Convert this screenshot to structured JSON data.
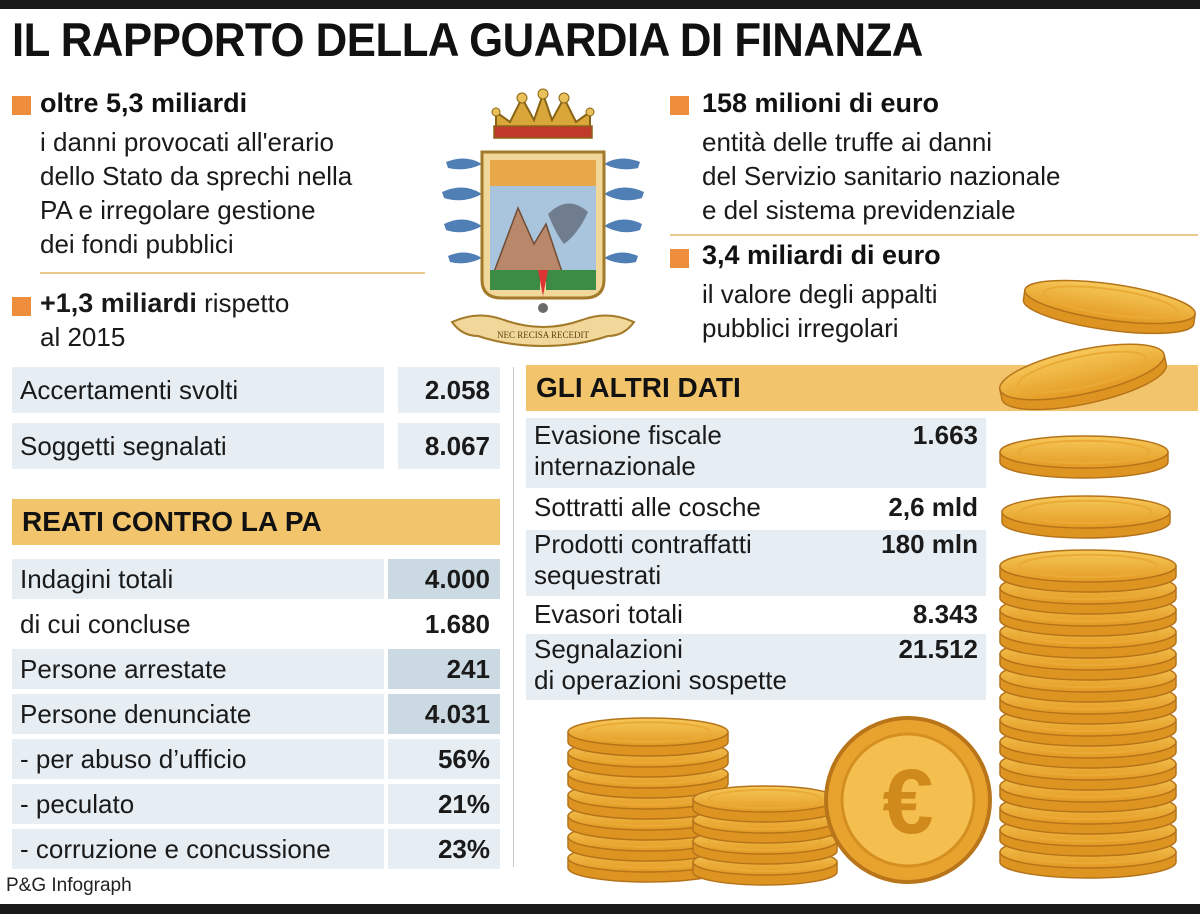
{
  "title": "IL RAPPORTO DELLA GUARDIA DI FINANZA",
  "colors": {
    "accent": "#ee8d3c",
    "section_header": "#f2c56c",
    "row_bg": "#e6eef4",
    "value_dark_bg": "#cbd9e3",
    "coin": "#f0b43c"
  },
  "left_top": {
    "headline": "oltre 5,3 miliardi",
    "lines": [
      "i danni provocati all'erario",
      "dello Stato da sprechi nella",
      "PA e irregolare gestione",
      "dei fondi pubblici"
    ],
    "second_headline": "+1,3 miliardi",
    "second_suffix": " rispetto",
    "second_line2": "al 2015"
  },
  "crest": {
    "icon": "guardia-di-finanza-crest-icon",
    "motto": "NEC RECISA RECEDIT"
  },
  "right_top": {
    "headline1": "158 milioni di euro",
    "lines1": [
      "entità delle truffe ai danni",
      "del Servizio sanitario nazionale",
      "e del sistema previdenziale"
    ],
    "headline2": "3,4 miliardi di euro",
    "lines2": [
      "il valore degli appalti",
      "pubblici irregolari"
    ]
  },
  "summary_table": [
    {
      "label": "Accertamenti svolti",
      "value": "2.058"
    },
    {
      "label": "Soggetti segnalati",
      "value": "8.067"
    }
  ],
  "reati": {
    "header": "REATI CONTRO LA PA",
    "rows": [
      {
        "label": "Indagini totali",
        "value": "4.000"
      },
      {
        "label": "di cui concluse",
        "value": "1.680"
      },
      {
        "label": "Persone arrestate",
        "value": "241"
      },
      {
        "label": "Persone denunciate",
        "value": "4.031"
      },
      {
        "label": "- per abuso d’ufficio",
        "value": "56%"
      },
      {
        "label": "- peculato",
        "value": "21%"
      },
      {
        "label": "- corruzione e concussione",
        "value": "23%"
      }
    ]
  },
  "altri": {
    "header": "GLI ALTRI DATI",
    "rows": [
      {
        "label1": "Evasione fiscale",
        "label2": "internazionale",
        "value": "1.663"
      },
      {
        "label1": "Sottratti alle cosche",
        "label2": "",
        "value": "2,6 mld"
      },
      {
        "label1": "Prodotti contraffatti",
        "label2": "sequestrati",
        "value": "180 mln"
      },
      {
        "label1": "Evasori totali",
        "label2": "",
        "value": "8.343"
      },
      {
        "label1": "Segnalazioni",
        "label2": "di operazioni sospette",
        "value": "21.512"
      }
    ]
  },
  "coin_symbol": "€",
  "credit": "P&G Infograph"
}
